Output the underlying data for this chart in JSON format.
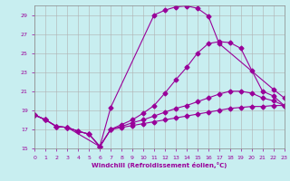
{
  "xlabel": "Windchill (Refroidissement éolien,°C)",
  "xlim": [
    0,
    23
  ],
  "ylim": [
    15,
    30
  ],
  "xticks": [
    0,
    1,
    2,
    3,
    4,
    5,
    6,
    7,
    8,
    9,
    10,
    11,
    12,
    13,
    14,
    15,
    16,
    17,
    18,
    19,
    20,
    21,
    22,
    23
  ],
  "yticks": [
    15,
    17,
    19,
    21,
    23,
    25,
    27,
    29
  ],
  "bg_color": "#c8eef0",
  "line_color": "#990099",
  "grid_color": "#b0b0b0",
  "curves": [
    {
      "x": [
        0,
        1,
        2,
        3,
        6,
        7,
        11,
        12,
        13,
        14,
        15,
        16,
        17,
        22,
        23
      ],
      "y": [
        18.5,
        18.0,
        17.3,
        17.2,
        15.2,
        19.3,
        29.0,
        29.5,
        29.85,
        29.95,
        29.7,
        28.9,
        26.0,
        21.2,
        20.3
      ]
    },
    {
      "x": [
        0,
        1,
        2,
        3,
        4,
        5,
        6,
        7,
        8,
        9,
        10,
        11,
        12,
        13,
        14,
        15,
        16,
        17,
        18,
        19,
        20,
        21,
        22,
        23
      ],
      "y": [
        18.5,
        18.0,
        17.3,
        17.2,
        16.8,
        16.5,
        15.2,
        17.0,
        17.5,
        18.0,
        18.7,
        19.5,
        20.8,
        22.2,
        23.5,
        25.0,
        26.0,
        26.2,
        26.1,
        25.5,
        23.2,
        21.0,
        20.5,
        19.5
      ]
    },
    {
      "x": [
        0,
        1,
        2,
        3,
        4,
        5,
        6,
        7,
        8,
        9,
        10,
        11,
        12,
        13,
        14,
        15,
        16,
        17,
        18,
        19,
        20,
        21,
        22,
        23
      ],
      "y": [
        18.5,
        18.0,
        17.3,
        17.2,
        16.8,
        16.5,
        15.2,
        17.0,
        17.3,
        17.7,
        18.0,
        18.4,
        18.8,
        19.2,
        19.5,
        19.9,
        20.3,
        20.7,
        21.0,
        21.0,
        20.8,
        20.3,
        20.0,
        19.5
      ]
    },
    {
      "x": [
        0,
        1,
        2,
        3,
        4,
        5,
        6,
        7,
        8,
        9,
        10,
        11,
        12,
        13,
        14,
        15,
        16,
        17,
        18,
        19,
        20,
        21,
        22,
        23
      ],
      "y": [
        18.5,
        18.0,
        17.3,
        17.2,
        16.8,
        16.5,
        15.2,
        17.0,
        17.2,
        17.4,
        17.6,
        17.8,
        18.0,
        18.2,
        18.4,
        18.6,
        18.8,
        19.0,
        19.2,
        19.3,
        19.4,
        19.4,
        19.5,
        19.5
      ]
    }
  ]
}
